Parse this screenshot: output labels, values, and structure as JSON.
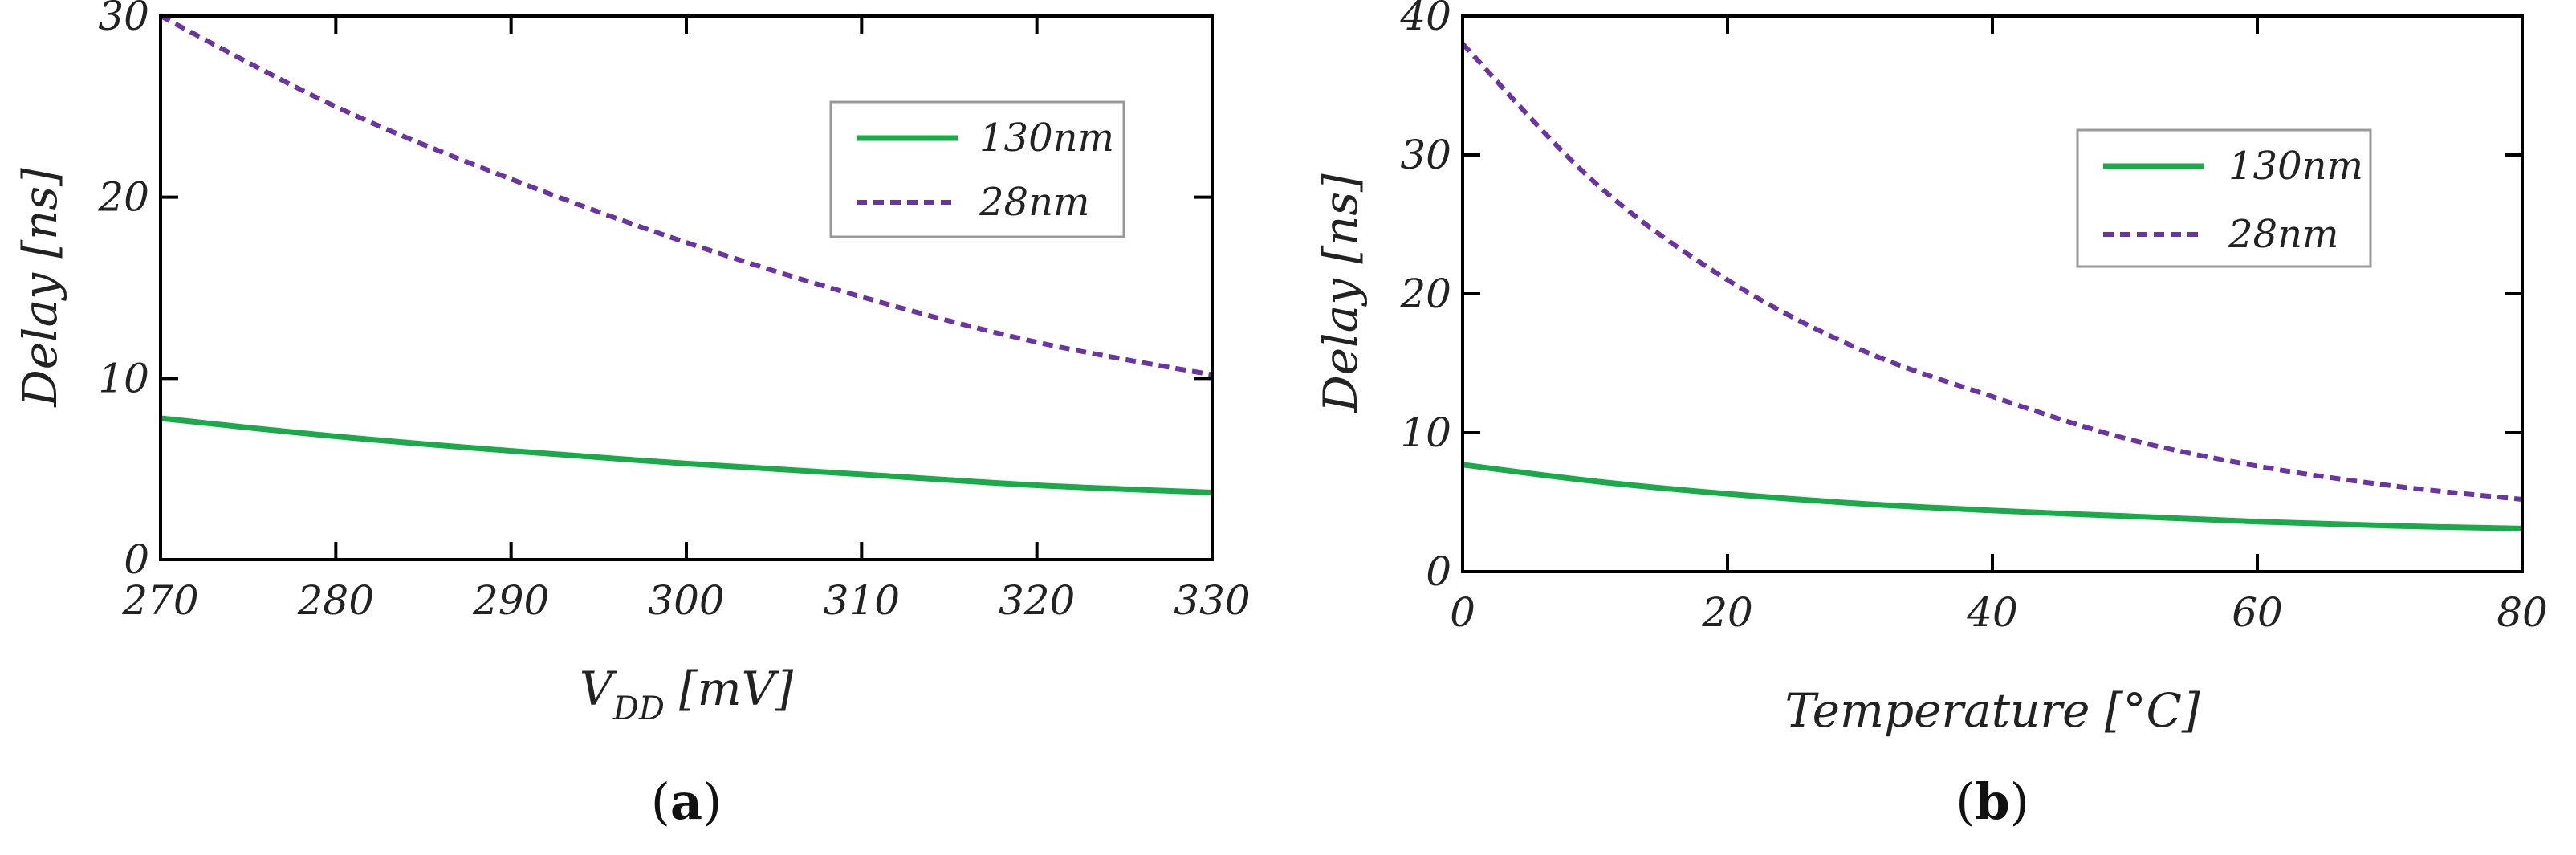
{
  "colors": {
    "green": "#1aaa4a",
    "purple": "#6a35a0",
    "axis": "#000000",
    "legend_border": "#999999"
  },
  "chart_data": [
    {
      "type": "line",
      "panel_label": "a",
      "xlabel": "V",
      "xlabel_sub": "DD",
      "xlabel_unit": "[mV]",
      "ylabel": "Delay [ns]",
      "xlim": [
        270,
        330
      ],
      "ylim": [
        0,
        30
      ],
      "xticks": [
        270,
        280,
        290,
        300,
        310,
        320,
        330
      ],
      "yticks": [
        0,
        10,
        20,
        30
      ],
      "legend": "top-right",
      "series": [
        {
          "name": "130nm",
          "style": "solid",
          "color": "#1aaa4a",
          "x": [
            270,
            280,
            290,
            300,
            310,
            320,
            330
          ],
          "y": [
            7.8,
            6.8,
            6.0,
            5.3,
            4.7,
            4.1,
            3.7
          ]
        },
        {
          "name": "28nm",
          "style": "dashed",
          "color": "#6a35a0",
          "x": [
            270,
            280,
            290,
            300,
            310,
            320,
            330
          ],
          "y": [
            30.0,
            25.0,
            21.0,
            17.5,
            14.5,
            12.0,
            10.2
          ]
        }
      ]
    },
    {
      "type": "line",
      "panel_label": "b",
      "xlabel": "Temperature [°C]",
      "ylabel": "Delay [ns]",
      "xlim": [
        0,
        80
      ],
      "ylim": [
        0,
        40
      ],
      "xticks": [
        0,
        20,
        40,
        60,
        80
      ],
      "yticks": [
        0,
        10,
        20,
        30,
        40
      ],
      "legend": "top-right",
      "series": [
        {
          "name": "130nm",
          "style": "solid",
          "color": "#1aaa4a",
          "x": [
            0,
            10,
            20,
            30,
            40,
            50,
            60,
            70,
            80
          ],
          "y": [
            7.7,
            6.5,
            5.6,
            4.9,
            4.4,
            4.0,
            3.6,
            3.3,
            3.1
          ]
        },
        {
          "name": "28nm",
          "style": "dashed",
          "color": "#6a35a0",
          "x": [
            0,
            10,
            20,
            30,
            40,
            50,
            60,
            70,
            80
          ],
          "y": [
            38.0,
            28.0,
            21.0,
            16.0,
            12.6,
            9.6,
            7.6,
            6.2,
            5.2
          ]
        }
      ]
    }
  ]
}
